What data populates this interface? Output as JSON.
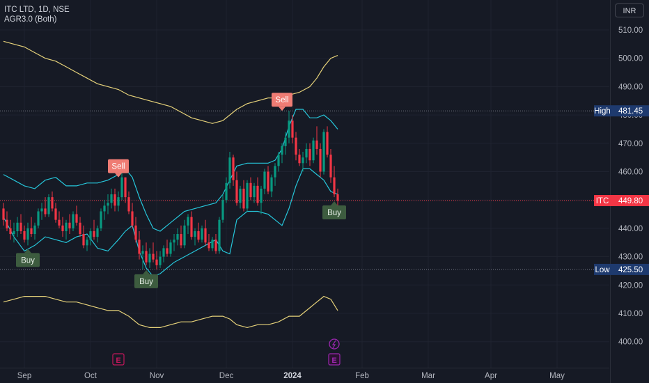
{
  "legend": {
    "symbol_line": "ITC LTD, 1D, NSE",
    "indicator_line": "AGR3.0 (Both)"
  },
  "currency": "INR",
  "colors": {
    "background": "#161a25",
    "up_candle": "#089981",
    "down_candle": "#f23645",
    "inner_band": "#26c6da",
    "outer_band": "#e6d27a",
    "sell_label": "#ef7c74",
    "buy_label": "#3d5c3f",
    "price_line": "#f23645",
    "hilo_tag": "#1e3a6e",
    "earnings": "#c2185b",
    "dividend": "#9c27b0"
  },
  "markers": {
    "high": {
      "label": "High",
      "value": "481.45"
    },
    "low": {
      "label": "Low",
      "value": "425.50"
    },
    "last": {
      "label": "ITC",
      "value": "449.80"
    }
  },
  "chart_data": {
    "type": "candlestick",
    "symbol": "ITC LTD",
    "interval": "1D",
    "exchange": "NSE",
    "ylim": [
      395,
      515
    ],
    "y_ticks": [
      "510.00",
      "500.00",
      "490.00",
      "480.00",
      "470.00",
      "460.00",
      "450.00",
      "440.00",
      "430.00",
      "420.00",
      "410.00",
      "400.00"
    ],
    "x_ticks": [
      {
        "label": "Sep",
        "bar": 6
      },
      {
        "label": "Oct",
        "bar": 25
      },
      {
        "label": "Nov",
        "bar": 44
      },
      {
        "label": "Dec",
        "bar": 64
      },
      {
        "label": "2024",
        "bar": 83,
        "bold": true
      },
      {
        "label": "Feb",
        "bar": 103
      },
      {
        "label": "Mar",
        "bar": 122
      },
      {
        "label": "Apr",
        "bar": 140
      },
      {
        "label": "May",
        "bar": 159
      }
    ],
    "candles": [
      [
        447,
        449,
        441,
        443
      ],
      [
        443,
        446,
        439,
        440
      ],
      [
        440,
        443,
        436,
        438
      ],
      [
        438,
        442,
        435,
        439
      ],
      [
        439,
        444,
        437,
        442
      ],
      [
        442,
        445,
        438,
        439
      ],
      [
        439,
        441,
        435,
        436
      ],
      [
        436,
        442,
        434,
        440
      ],
      [
        440,
        444,
        437,
        438
      ],
      [
        438,
        442,
        436,
        441
      ],
      [
        441,
        447,
        440,
        446
      ],
      [
        446,
        449,
        443,
        447
      ],
      [
        447,
        451,
        444,
        445
      ],
      [
        445,
        452,
        444,
        451
      ],
      [
        451,
        453,
        446,
        447
      ],
      [
        447,
        449,
        442,
        443
      ],
      [
        443,
        446,
        440,
        441
      ],
      [
        441,
        444,
        437,
        439
      ],
      [
        439,
        443,
        436,
        442
      ],
      [
        442,
        445,
        438,
        440
      ],
      [
        440,
        446,
        439,
        445
      ],
      [
        445,
        448,
        441,
        442
      ],
      [
        442,
        444,
        437,
        438
      ],
      [
        438,
        441,
        433,
        434
      ],
      [
        434,
        437,
        432,
        436
      ],
      [
        436,
        440,
        434,
        439
      ],
      [
        439,
        443,
        436,
        437
      ],
      [
        437,
        441,
        435,
        440
      ],
      [
        440,
        447,
        439,
        446
      ],
      [
        446,
        450,
        443,
        448
      ],
      [
        448,
        452,
        445,
        449
      ],
      [
        449,
        454,
        447,
        452
      ],
      [
        452,
        454,
        446,
        448
      ],
      [
        448,
        453,
        446,
        451
      ],
      [
        451,
        460,
        450,
        458
      ],
      [
        458,
        458,
        449,
        451
      ],
      [
        451,
        453,
        445,
        446
      ],
      [
        446,
        449,
        440,
        441
      ],
      [
        441,
        444,
        435,
        436
      ],
      [
        436,
        439,
        429,
        431
      ],
      [
        431,
        434,
        425.5,
        432
      ],
      [
        432,
        435,
        427,
        428
      ],
      [
        428,
        433,
        426,
        431
      ],
      [
        431,
        435,
        428,
        429
      ],
      [
        429,
        432,
        425.5,
        427
      ],
      [
        427,
        432,
        426,
        430
      ],
      [
        430,
        434,
        428,
        433
      ],
      [
        433,
        436,
        430,
        431
      ],
      [
        431,
        436,
        430,
        435
      ],
      [
        435,
        438,
        432,
        436
      ],
      [
        436,
        440,
        434,
        438
      ],
      [
        438,
        441,
        433,
        434
      ],
      [
        434,
        443,
        433,
        441
      ],
      [
        441,
        445,
        438,
        444
      ],
      [
        444,
        446,
        436,
        437
      ],
      [
        437,
        440,
        434,
        439
      ],
      [
        439,
        442,
        435,
        436
      ],
      [
        436,
        441,
        435,
        440
      ],
      [
        440,
        443,
        434,
        435
      ],
      [
        435,
        438,
        432,
        433
      ],
      [
        433,
        437,
        432,
        436
      ],
      [
        436,
        438,
        431,
        432
      ],
      [
        432,
        444,
        431,
        443
      ],
      [
        443,
        452,
        442,
        450
      ],
      [
        450,
        458,
        449,
        456
      ],
      [
        456,
        467,
        454,
        465
      ],
      [
        465,
        466,
        455,
        457
      ],
      [
        457,
        460,
        448,
        449
      ],
      [
        449,
        455,
        447,
        454
      ],
      [
        454,
        457,
        446,
        447
      ],
      [
        447,
        457,
        446,
        456
      ],
      [
        456,
        458,
        450,
        451
      ],
      [
        451,
        456,
        449,
        455
      ],
      [
        455,
        458,
        448,
        449
      ],
      [
        449,
        455,
        445,
        454
      ],
      [
        454,
        461,
        452,
        460
      ],
      [
        460,
        462,
        452,
        453
      ],
      [
        453,
        459,
        451,
        458
      ],
      [
        458,
        463,
        455,
        462
      ],
      [
        462,
        467,
        460,
        466
      ],
      [
        466,
        470,
        463,
        469
      ],
      [
        469,
        474,
        466,
        472
      ],
      [
        472,
        481.45,
        470,
        478
      ],
      [
        478,
        480,
        470,
        472
      ],
      [
        472,
        474,
        464,
        466
      ],
      [
        466,
        468,
        462,
        463
      ],
      [
        463,
        467,
        460,
        465
      ],
      [
        465,
        470,
        463,
        468
      ],
      [
        468,
        470,
        462,
        464
      ],
      [
        464,
        472,
        463,
        471
      ],
      [
        471,
        476,
        466,
        468
      ],
      [
        468,
        470,
        458,
        460
      ],
      [
        460,
        475,
        459,
        474
      ],
      [
        474,
        476,
        465,
        466
      ],
      [
        466,
        468,
        456,
        458
      ],
      [
        458,
        462,
        451,
        452
      ],
      [
        452,
        454,
        448,
        449.8
      ]
    ],
    "inner_upper_band": [
      [
        0,
        459
      ],
      [
        3,
        457
      ],
      [
        6,
        455
      ],
      [
        9,
        454
      ],
      [
        12,
        457
      ],
      [
        15,
        458
      ],
      [
        18,
        455
      ],
      [
        21,
        455
      ],
      [
        24,
        456
      ],
      [
        27,
        456
      ],
      [
        30,
        457
      ],
      [
        33,
        459
      ],
      [
        35,
        461
      ],
      [
        37,
        458
      ],
      [
        39,
        451
      ],
      [
        41,
        445
      ],
      [
        43,
        440
      ],
      [
        45,
        439
      ],
      [
        47,
        441
      ],
      [
        49,
        443
      ],
      [
        52,
        446
      ],
      [
        55,
        447
      ],
      [
        58,
        448
      ],
      [
        61,
        449
      ],
      [
        63,
        452
      ],
      [
        65,
        457
      ],
      [
        67,
        462
      ],
      [
        70,
        463
      ],
      [
        73,
        463
      ],
      [
        76,
        463
      ],
      [
        78,
        464
      ],
      [
        80,
        468
      ],
      [
        82,
        476
      ],
      [
        84,
        482
      ],
      [
        86,
        482
      ],
      [
        88,
        479
      ],
      [
        90,
        479
      ],
      [
        92,
        480
      ],
      [
        94,
        478
      ],
      [
        96,
        475
      ]
    ],
    "inner_lower_band": [
      [
        0,
        444
      ],
      [
        3,
        437
      ],
      [
        6,
        432
      ],
      [
        9,
        434
      ],
      [
        12,
        437
      ],
      [
        15,
        436
      ],
      [
        18,
        435
      ],
      [
        21,
        437
      ],
      [
        24,
        438
      ],
      [
        27,
        433
      ],
      [
        30,
        432
      ],
      [
        33,
        436
      ],
      [
        35,
        439
      ],
      [
        37,
        441
      ],
      [
        39,
        432
      ],
      [
        41,
        426
      ],
      [
        43,
        423
      ],
      [
        45,
        424
      ],
      [
        47,
        426
      ],
      [
        49,
        428
      ],
      [
        52,
        430
      ],
      [
        55,
        432
      ],
      [
        58,
        434
      ],
      [
        61,
        436
      ],
      [
        63,
        432
      ],
      [
        65,
        431
      ],
      [
        67,
        443
      ],
      [
        70,
        446
      ],
      [
        73,
        446
      ],
      [
        76,
        445
      ],
      [
        78,
        443
      ],
      [
        80,
        441
      ],
      [
        82,
        447
      ],
      [
        84,
        455
      ],
      [
        86,
        461
      ],
      [
        88,
        461
      ],
      [
        90,
        459
      ],
      [
        92,
        457
      ],
      [
        94,
        453
      ],
      [
        96,
        452
      ]
    ],
    "outer_upper_band": [
      [
        0,
        506
      ],
      [
        3,
        505
      ],
      [
        6,
        504
      ],
      [
        9,
        502
      ],
      [
        12,
        500
      ],
      [
        15,
        499
      ],
      [
        18,
        497
      ],
      [
        21,
        495
      ],
      [
        24,
        493
      ],
      [
        27,
        491
      ],
      [
        30,
        490
      ],
      [
        33,
        489
      ],
      [
        36,
        487
      ],
      [
        39,
        486
      ],
      [
        42,
        485
      ],
      [
        45,
        484
      ],
      [
        48,
        483
      ],
      [
        51,
        481
      ],
      [
        54,
        479
      ],
      [
        57,
        478
      ],
      [
        60,
        477
      ],
      [
        63,
        478
      ],
      [
        65,
        480
      ],
      [
        67,
        482
      ],
      [
        70,
        484
      ],
      [
        73,
        485
      ],
      [
        76,
        486
      ],
      [
        79,
        486
      ],
      [
        82,
        487
      ],
      [
        85,
        488
      ],
      [
        88,
        490
      ],
      [
        90,
        493
      ],
      [
        92,
        497
      ],
      [
        94,
        500
      ],
      [
        96,
        501
      ]
    ],
    "outer_lower_band": [
      [
        0,
        414
      ],
      [
        3,
        415
      ],
      [
        6,
        416
      ],
      [
        9,
        416
      ],
      [
        12,
        416
      ],
      [
        15,
        415
      ],
      [
        18,
        414
      ],
      [
        21,
        414
      ],
      [
        24,
        413
      ],
      [
        27,
        412
      ],
      [
        30,
        411
      ],
      [
        33,
        411
      ],
      [
        36,
        409
      ],
      [
        39,
        406
      ],
      [
        42,
        405
      ],
      [
        45,
        405
      ],
      [
        48,
        406
      ],
      [
        51,
        407
      ],
      [
        54,
        407
      ],
      [
        57,
        408
      ],
      [
        60,
        409
      ],
      [
        63,
        409
      ],
      [
        65,
        408
      ],
      [
        67,
        406
      ],
      [
        70,
        405
      ],
      [
        73,
        406
      ],
      [
        76,
        406
      ],
      [
        79,
        407
      ],
      [
        82,
        409
      ],
      [
        85,
        409
      ],
      [
        88,
        412
      ],
      [
        90,
        414
      ],
      [
        92,
        416
      ],
      [
        94,
        415
      ],
      [
        96,
        411
      ]
    ],
    "signals": [
      {
        "type": "Buy",
        "bar": 7,
        "price": 433
      },
      {
        "type": "Sell",
        "bar": 33,
        "price": 458
      },
      {
        "type": "Buy",
        "bar": 41,
        "price": 425.5
      },
      {
        "type": "Sell",
        "bar": 80,
        "price": 481.45
      },
      {
        "type": "Buy",
        "bar": 95,
        "price": 449.8
      }
    ],
    "events": [
      {
        "type": "earnings",
        "label": "E",
        "bar": 33
      },
      {
        "type": "dividend",
        "label": "E",
        "bar": 95
      }
    ]
  }
}
